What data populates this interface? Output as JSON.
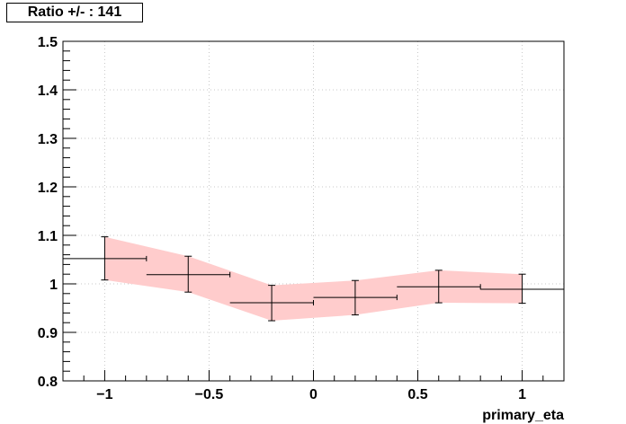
{
  "title": "Ratio +/- : 141",
  "chart_data": {
    "type": "line",
    "title": "Ratio +/- : 141",
    "xlabel": "primary_eta",
    "ylabel": "",
    "xlim": [
      -1.2,
      1.2
    ],
    "ylim": [
      0.8,
      1.5
    ],
    "grid": true,
    "x_ticks": [
      -1,
      -0.5,
      0,
      0.5,
      1
    ],
    "x_tick_labels": [
      "−1",
      "−0.5",
      "0",
      "0.5",
      "1"
    ],
    "y_ticks": [
      0.8,
      0.9,
      1.0,
      1.1,
      1.2,
      1.3,
      1.4,
      1.5
    ],
    "y_tick_labels": [
      "0.8",
      "0.9",
      "1",
      "1.1",
      "1.2",
      "1.3",
      "1.4",
      "1.5"
    ],
    "points": [
      {
        "x": -1.0,
        "xlow": -1.2,
        "xhigh": -0.8,
        "y": 1.052,
        "ylow": 1.008,
        "yhigh": 1.097
      },
      {
        "x": -0.6,
        "xlow": -0.8,
        "xhigh": -0.4,
        "y": 1.019,
        "ylow": 0.983,
        "yhigh": 1.057
      },
      {
        "x": -0.2,
        "xlow": -0.4,
        "xhigh": 0.0,
        "y": 0.961,
        "ylow": 0.924,
        "yhigh": 0.997
      },
      {
        "x": 0.2,
        "xlow": 0.0,
        "xhigh": 0.4,
        "y": 0.972,
        "ylow": 0.936,
        "yhigh": 1.007
      },
      {
        "x": 0.6,
        "xlow": 0.4,
        "xhigh": 0.8,
        "y": 0.994,
        "ylow": 0.961,
        "yhigh": 1.028
      },
      {
        "x": 1.0,
        "xlow": 0.8,
        "xhigh": 1.2,
        "y": 0.989,
        "ylow": 0.96,
        "yhigh": 1.02
      }
    ],
    "band": {
      "color": "#ffcccc",
      "x": [
        -1.0,
        -0.6,
        -0.2,
        0.2,
        0.6,
        1.0
      ],
      "low": [
        1.008,
        0.983,
        0.924,
        0.936,
        0.961,
        0.96
      ],
      "high": [
        1.097,
        1.057,
        0.997,
        1.007,
        1.028,
        1.02
      ]
    },
    "colors": {
      "line": "#000000",
      "band": "#ffcccc",
      "grid": "#c8c8c8"
    }
  }
}
